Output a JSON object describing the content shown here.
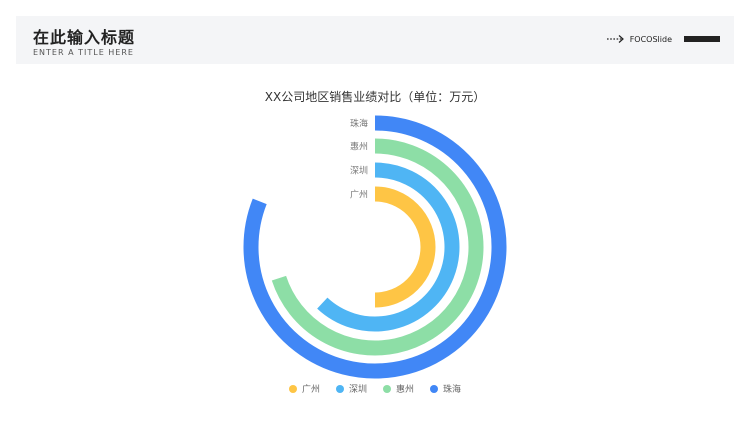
{
  "header": {
    "title": "在此输入标题",
    "subtitle": "ENTER A TITLE HERE",
    "brand": "FOCOSlide",
    "brand_icon": "dotted-arrow-icon"
  },
  "chart_data": {
    "type": "bar",
    "polar": true,
    "title": "XX公司地区销售业绩对比（单位：万元）",
    "categories": [
      "广州",
      "深圳",
      "惠州",
      "珠海"
    ],
    "values": [
      0.5,
      0.62,
      0.7,
      0.81
    ],
    "value_scale": "fraction of full circle",
    "colors": [
      "#fec545",
      "#4fb5f4",
      "#8ddea6",
      "#4187f6"
    ],
    "legend": {
      "placement": "bottom",
      "entries": [
        "广州",
        "深圳",
        "惠州",
        "珠海"
      ]
    }
  }
}
